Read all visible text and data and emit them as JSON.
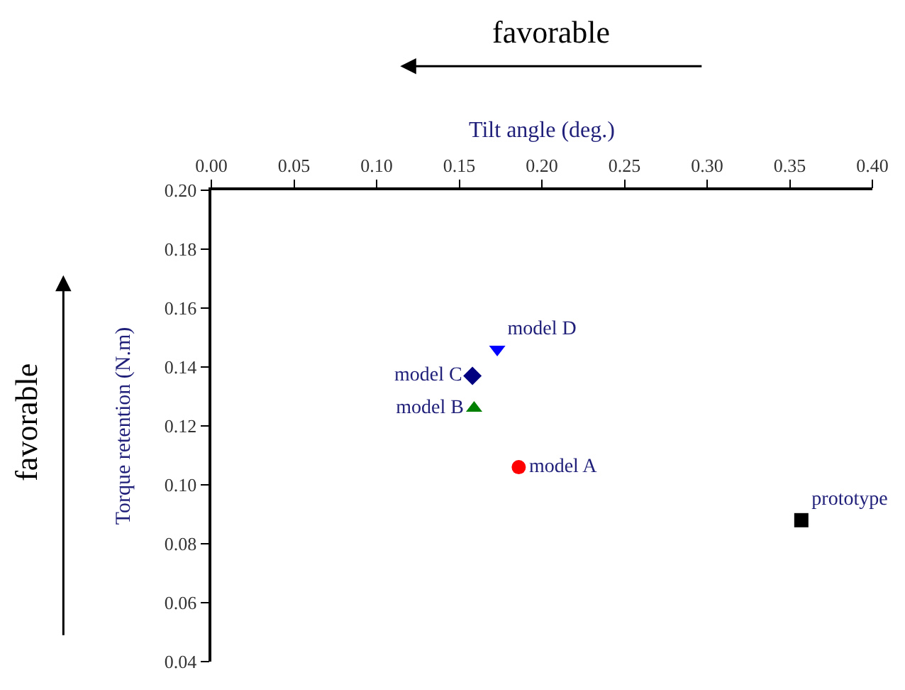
{
  "chart_data": {
    "type": "scatter",
    "xlabel": "Tilt angle (deg.)",
    "ylabel": "Torque retention (N.m)",
    "annotations": [
      "favorable",
      "favorable"
    ],
    "xlim": [
      0,
      0.4
    ],
    "ylim": [
      0.04,
      0.2
    ],
    "xticks": [
      {
        "value": 0,
        "label": "0.00"
      },
      0.05,
      {
        "value": 0.1,
        "label": "0.10"
      },
      0.15,
      {
        "value": 0.2,
        "label": "0.20"
      },
      0.25,
      {
        "value": 0.3,
        "label": "0.30"
      },
      0.35,
      {
        "value": 0.4,
        "label": "0.40"
      }
    ],
    "yticks": [
      0.04,
      0.06,
      0.08,
      {
        "value": 0.1,
        "label": "0.10"
      },
      0.12,
      0.14,
      0.16,
      0.18,
      {
        "value": 0.2,
        "label": "0.20"
      }
    ],
    "legend": false,
    "series": [
      {
        "name": "prototype",
        "color": "#000000",
        "marker": "square",
        "x": [
          0.357
        ],
        "values": [
          0.088
        ]
      },
      {
        "name": "model A",
        "color": "#ff0000",
        "marker": "circle",
        "x": [
          0.186
        ],
        "values": [
          0.106
        ]
      },
      {
        "name": "model B",
        "color": "#008000",
        "marker": "triangle",
        "x": [
          0.159
        ],
        "values": [
          0.126
        ]
      },
      {
        "name": "model C",
        "color": "#000080",
        "marker": "diamond",
        "x": [
          0.158
        ],
        "values": [
          0.137
        ]
      },
      {
        "name": "model D",
        "color": "#0000ff",
        "marker": "triangle-down",
        "x": [
          0.173
        ],
        "values": [
          0.146
        ]
      }
    ]
  }
}
